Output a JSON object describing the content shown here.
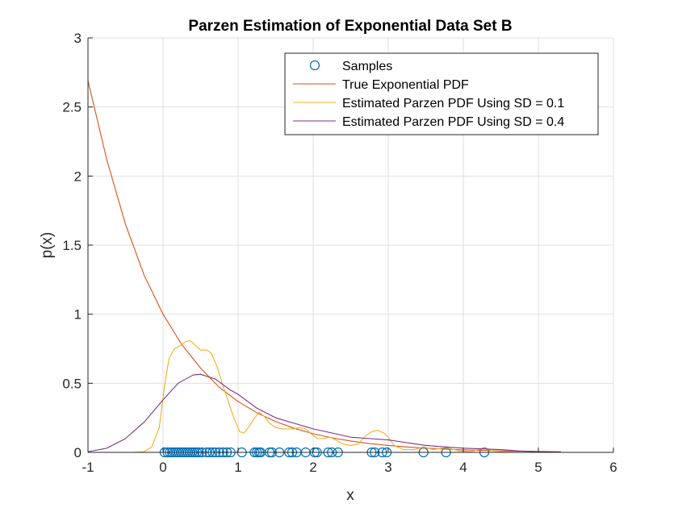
{
  "chart_data": {
    "type": "line",
    "title": "Parzen Estimation of Exponential Data Set B",
    "xlabel": "x",
    "ylabel": "p(x)",
    "xlim": [
      -1,
      6
    ],
    "ylim": [
      0,
      3
    ],
    "xticks": [
      -1,
      0,
      1,
      2,
      3,
      4,
      5,
      6
    ],
    "yticks": [
      0,
      0.5,
      1,
      1.5,
      2,
      2.5,
      3
    ],
    "xtick_labels": [
      "-1",
      "0",
      "1",
      "2",
      "3",
      "4",
      "5",
      "6"
    ],
    "ytick_labels": [
      "0",
      "0.5",
      "1",
      "1.5",
      "2",
      "2.5",
      "3"
    ],
    "grid": true,
    "legend_position": "top-right",
    "series": [
      {
        "name": "Samples",
        "kind": "scatter",
        "marker": "circle",
        "color": "#0072BD",
        "x": [
          0.02,
          0.06,
          0.09,
          0.12,
          0.15,
          0.18,
          0.21,
          0.24,
          0.27,
          0.3,
          0.33,
          0.36,
          0.39,
          0.42,
          0.45,
          0.48,
          0.52,
          0.58,
          0.62,
          0.66,
          0.7,
          0.75,
          0.8,
          0.85,
          0.9,
          1.05,
          1.22,
          1.25,
          1.28,
          1.3,
          1.42,
          1.45,
          1.55,
          1.68,
          1.72,
          1.78,
          1.9,
          2.02,
          2.05,
          2.2,
          2.25,
          2.33,
          2.78,
          2.82,
          2.92,
          2.98,
          3.47,
          3.77,
          4.28
        ],
        "y": [
          0,
          0,
          0,
          0,
          0,
          0,
          0,
          0,
          0,
          0,
          0,
          0,
          0,
          0,
          0,
          0,
          0,
          0,
          0,
          0,
          0,
          0,
          0,
          0,
          0,
          0,
          0,
          0,
          0,
          0,
          0,
          0,
          0,
          0,
          0,
          0,
          0,
          0,
          0,
          0,
          0,
          0,
          0,
          0,
          0,
          0,
          0,
          0,
          0
        ]
      },
      {
        "name": "True Exponential PDF",
        "kind": "line",
        "color": "#D95319",
        "x": [
          -1,
          -0.75,
          -0.5,
          -0.25,
          0,
          0.25,
          0.5,
          0.75,
          1,
          1.25,
          1.5,
          1.75,
          2,
          2.25,
          2.5,
          2.75,
          3,
          3.25,
          3.5,
          3.75,
          4,
          4.25,
          4.5,
          4.75,
          5,
          5.3
        ],
        "y": [
          2.69,
          2.12,
          1.65,
          1.28,
          1.0,
          0.78,
          0.61,
          0.47,
          0.368,
          0.287,
          0.223,
          0.174,
          0.135,
          0.105,
          0.082,
          0.064,
          0.05,
          0.039,
          0.03,
          0.024,
          0.018,
          0.014,
          0.011,
          0.009,
          0.007,
          0.005
        ]
      },
      {
        "name": "Estimated Parzen PDF Using SD = 0.1",
        "kind": "line",
        "color": "#EDB120",
        "x": [
          -1,
          -0.4,
          -0.25,
          -0.15,
          -0.05,
          0.02,
          0.08,
          0.15,
          0.22,
          0.3,
          0.36,
          0.42,
          0.5,
          0.58,
          0.64,
          0.72,
          0.8,
          0.88,
          0.95,
          1.02,
          1.08,
          1.15,
          1.22,
          1.28,
          1.35,
          1.42,
          1.5,
          1.58,
          1.66,
          1.74,
          1.82,
          1.9,
          1.98,
          2.06,
          2.14,
          2.22,
          2.3,
          2.4,
          2.5,
          2.6,
          2.7,
          2.78,
          2.86,
          2.94,
          3.0,
          3.08,
          3.2,
          3.35,
          3.47,
          3.6,
          3.77,
          3.95,
          4.1,
          4.2,
          4.28,
          4.4,
          4.6,
          5.0
        ],
        "y": [
          0,
          0,
          0.005,
          0.04,
          0.18,
          0.48,
          0.68,
          0.75,
          0.77,
          0.8,
          0.81,
          0.78,
          0.74,
          0.74,
          0.72,
          0.62,
          0.48,
          0.35,
          0.24,
          0.15,
          0.14,
          0.19,
          0.25,
          0.29,
          0.26,
          0.21,
          0.18,
          0.17,
          0.17,
          0.17,
          0.18,
          0.17,
          0.13,
          0.1,
          0.1,
          0.11,
          0.09,
          0.06,
          0.05,
          0.06,
          0.12,
          0.15,
          0.16,
          0.14,
          0.11,
          0.05,
          0.02,
          0.02,
          0.04,
          0.02,
          0.035,
          0.01,
          0.005,
          0.02,
          0.03,
          0.01,
          0.002,
          0
        ]
      },
      {
        "name": "Estimated Parzen PDF Using SD = 0.4",
        "kind": "line",
        "color": "#7E2F8E",
        "x": [
          -1,
          -0.75,
          -0.5,
          -0.25,
          0,
          0.2,
          0.4,
          0.5,
          0.7,
          0.9,
          1.0,
          1.25,
          1.5,
          1.75,
          2.0,
          2.25,
          2.5,
          2.75,
          3.0,
          3.25,
          3.5,
          3.75,
          4.0,
          4.25,
          4.5,
          4.75,
          5.0,
          5.3
        ],
        "y": [
          0.005,
          0.03,
          0.1,
          0.22,
          0.38,
          0.5,
          0.56,
          0.565,
          0.53,
          0.45,
          0.42,
          0.32,
          0.25,
          0.21,
          0.17,
          0.14,
          0.11,
          0.1,
          0.09,
          0.07,
          0.05,
          0.04,
          0.03,
          0.025,
          0.02,
          0.01,
          0.005,
          0.002
        ]
      }
    ]
  }
}
